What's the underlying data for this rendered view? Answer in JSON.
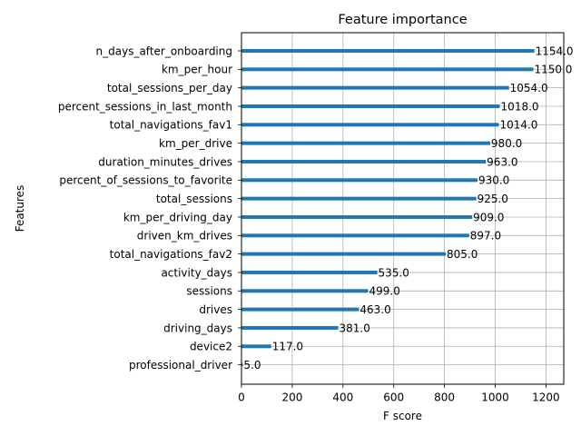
{
  "chart_data": {
    "type": "bar",
    "orientation": "horizontal",
    "title": "Feature importance",
    "xlabel": "F score",
    "ylabel": "Features",
    "xlim": [
      0,
      1270
    ],
    "xticks": [
      0,
      200,
      400,
      600,
      800,
      1000,
      1200
    ],
    "grid": true,
    "bar_color": "#1f77b4",
    "categories": [
      "n_days_after_onboarding",
      "km_per_hour",
      "total_sessions_per_day",
      "percent_sessions_in_last_month",
      "total_navigations_fav1",
      "km_per_drive",
      "duration_minutes_drives",
      "percent_of_sessions_to_favorite",
      "total_sessions",
      "km_per_driving_day",
      "driven_km_drives",
      "total_navigations_fav2",
      "activity_days",
      "sessions",
      "drives",
      "driving_days",
      "device2",
      "professional_driver"
    ],
    "values": [
      1154,
      1150,
      1054,
      1018,
      1014,
      980,
      963,
      930,
      925,
      909,
      897,
      805,
      535,
      499,
      463,
      381,
      117,
      5
    ],
    "value_labels": [
      "1154.0",
      "1150.0",
      "1054.0",
      "1018.0",
      "1014.0",
      "980.0",
      "963.0",
      "930.0",
      "925.0",
      "909.0",
      "897.0",
      "805.0",
      "535.0",
      "499.0",
      "463.0",
      "381.0",
      "117.0",
      "5.0"
    ]
  }
}
